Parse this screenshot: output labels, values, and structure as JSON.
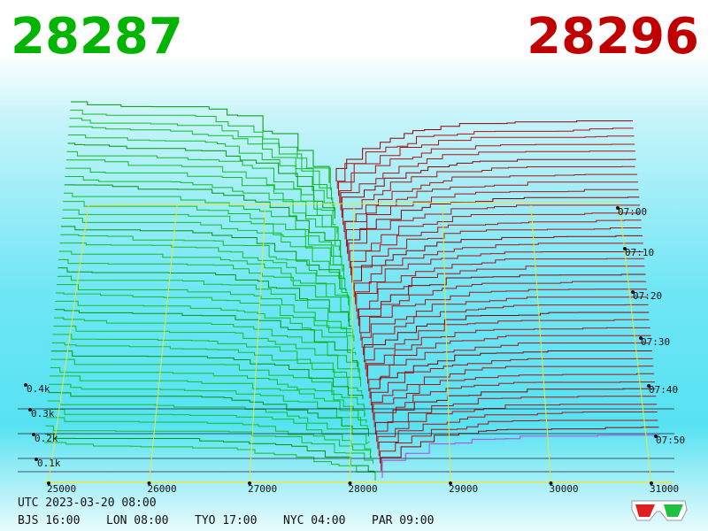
{
  "prices": {
    "bid": "28287",
    "ask": "28296"
  },
  "price_axis": [
    "25000",
    "26000",
    "27000",
    "28000",
    "29000",
    "30000",
    "31000"
  ],
  "depth_axis": [
    "0.1k",
    "0.2k",
    "0.3k",
    "0.4k"
  ],
  "time_axis": [
    "07:00",
    "07:10",
    "07:20",
    "07:30",
    "07:40",
    "07:50"
  ],
  "footer": {
    "utc": "UTC 2023-03-20 08:00",
    "zones": [
      "BJS 16:00",
      "LON 08:00",
      "TYO 17:00",
      "NYC 04:00",
      "PAR 09:00"
    ]
  }
}
